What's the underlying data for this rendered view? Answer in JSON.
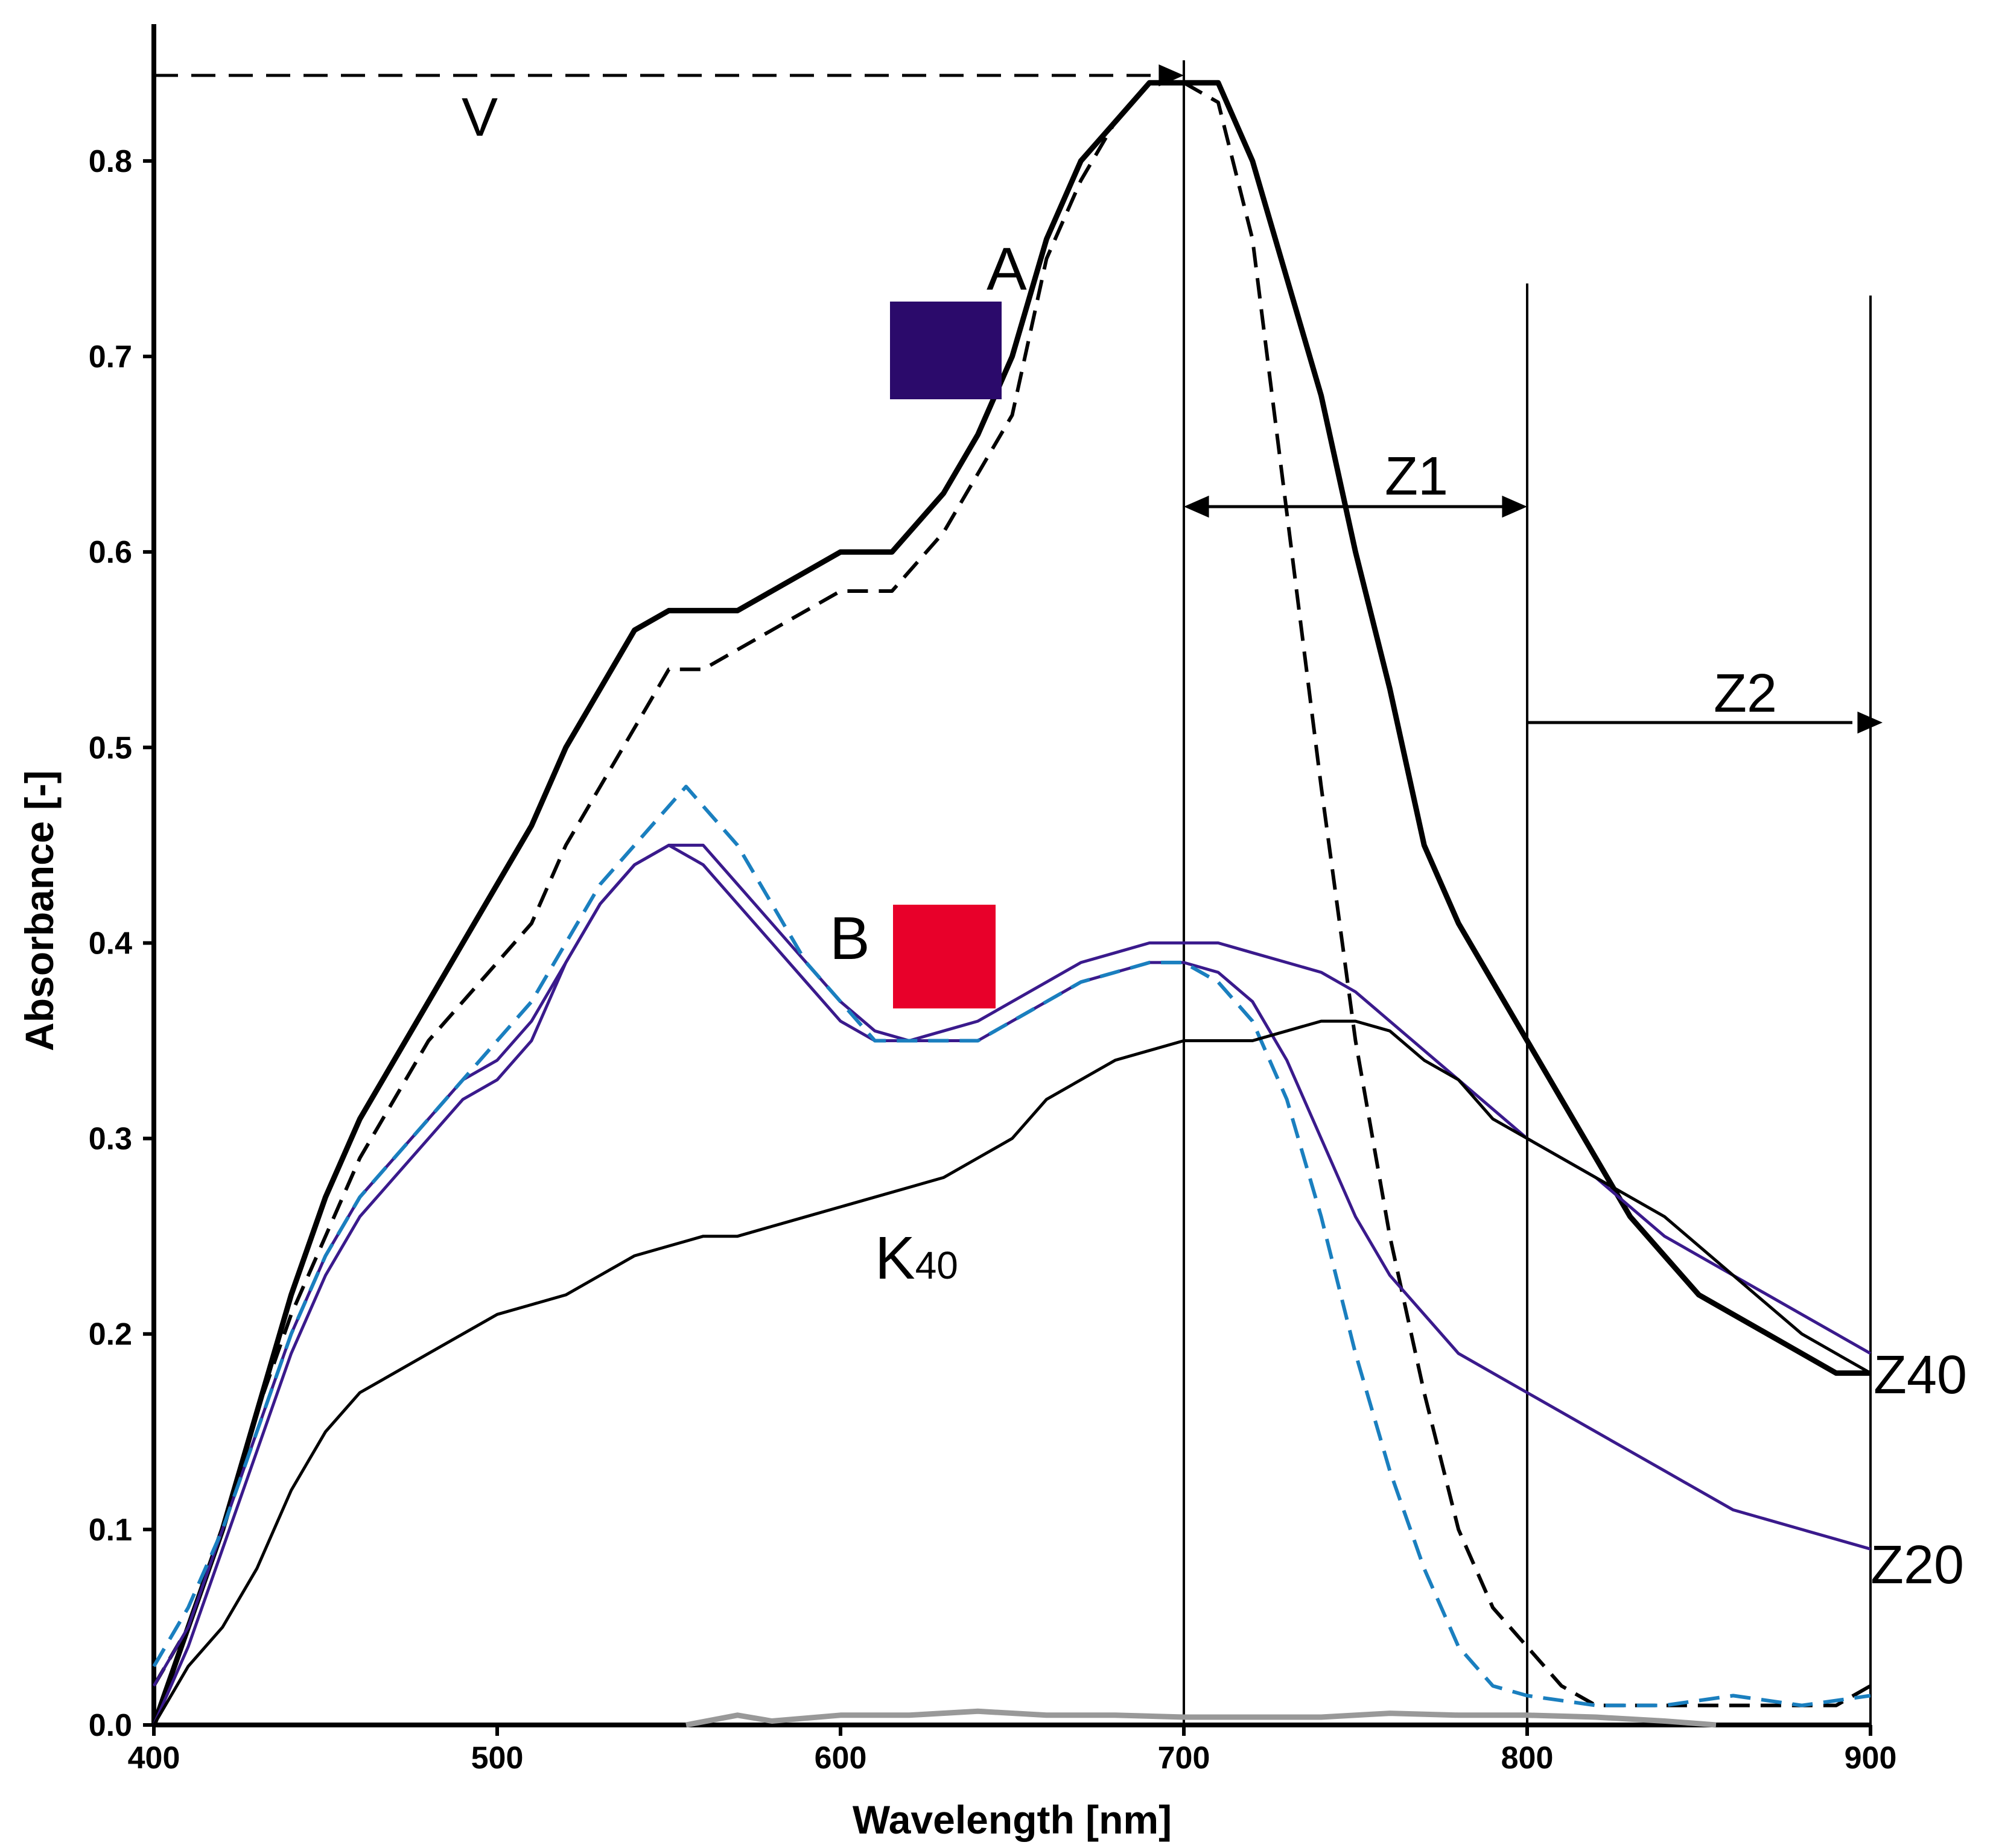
{
  "chart_data": {
    "type": "line",
    "xlabel": "Wavelength [nm]",
    "ylabel": "Absorbance [-]",
    "xlim": [
      400,
      900
    ],
    "ylim": [
      0,
      0.87
    ],
    "xticks": [
      400,
      500,
      600,
      700,
      800,
      900
    ],
    "yticks": [
      0.0,
      0.1,
      0.2,
      0.3,
      0.4,
      0.5,
      0.6,
      0.7,
      0.8
    ],
    "ytick_labels": [
      "0.0",
      "0.1",
      "0.2",
      "0.3",
      "0.4",
      "0.5",
      "0.6",
      "0.7",
      "0.8"
    ],
    "series": [
      {
        "name": "Z40 (A, solid)",
        "color": "#000000",
        "style": "solid-thick",
        "x": [
          400,
          410,
          420,
          430,
          440,
          450,
          460,
          470,
          480,
          490,
          500,
          510,
          520,
          530,
          540,
          550,
          560,
          570,
          580,
          590,
          600,
          615,
          630,
          640,
          650,
          660,
          670,
          680,
          690,
          700,
          710,
          720,
          730,
          740,
          750,
          760,
          770,
          780,
          790,
          800,
          810,
          820,
          830,
          840,
          850,
          860,
          870,
          880,
          890,
          900
        ],
        "y": [
          0.0,
          0.05,
          0.1,
          0.16,
          0.22,
          0.27,
          0.31,
          0.34,
          0.37,
          0.4,
          0.43,
          0.46,
          0.5,
          0.53,
          0.56,
          0.57,
          0.57,
          0.57,
          0.58,
          0.59,
          0.6,
          0.6,
          0.63,
          0.66,
          0.7,
          0.76,
          0.8,
          0.82,
          0.84,
          0.84,
          0.84,
          0.8,
          0.74,
          0.68,
          0.6,
          0.53,
          0.45,
          0.41,
          0.38,
          0.35,
          0.32,
          0.29,
          0.26,
          0.24,
          0.22,
          0.21,
          0.2,
          0.19,
          0.18,
          0.18
        ]
      },
      {
        "name": "V (A, dashed)",
        "color": "#000000",
        "style": "dashed",
        "x": [
          400,
          410,
          420,
          430,
          440,
          450,
          460,
          470,
          480,
          490,
          500,
          510,
          520,
          530,
          540,
          550,
          560,
          570,
          580,
          600,
          615,
          630,
          640,
          650,
          660,
          670,
          680,
          690,
          700,
          710,
          720,
          730,
          740,
          750,
          760,
          770,
          780,
          790,
          800,
          810,
          820,
          830,
          850,
          870,
          890,
          900
        ],
        "y": [
          0.02,
          0.05,
          0.1,
          0.16,
          0.21,
          0.25,
          0.29,
          0.32,
          0.35,
          0.37,
          0.39,
          0.41,
          0.45,
          0.48,
          0.51,
          0.54,
          0.54,
          0.55,
          0.56,
          0.58,
          0.58,
          0.61,
          0.64,
          0.67,
          0.75,
          0.79,
          0.82,
          0.84,
          0.84,
          0.83,
          0.76,
          0.62,
          0.48,
          0.35,
          0.25,
          0.17,
          0.1,
          0.06,
          0.04,
          0.02,
          0.01,
          0.01,
          0.01,
          0.01,
          0.01,
          0.02
        ]
      },
      {
        "name": "Z20 (B)",
        "color": "#3a1a8c",
        "style": "solid",
        "x": [
          400,
          410,
          420,
          430,
          440,
          450,
          460,
          470,
          480,
          490,
          500,
          510,
          520,
          530,
          540,
          550,
          560,
          570,
          580,
          590,
          600,
          610,
          620,
          630,
          640,
          650,
          660,
          670,
          680,
          690,
          700,
          710,
          720,
          730,
          740,
          750,
          760,
          770,
          780,
          790,
          800,
          820,
          840,
          860,
          880,
          900
        ],
        "y": [
          0.0,
          0.04,
          0.09,
          0.14,
          0.19,
          0.23,
          0.26,
          0.28,
          0.3,
          0.32,
          0.33,
          0.35,
          0.39,
          0.42,
          0.44,
          0.45,
          0.44,
          0.42,
          0.4,
          0.38,
          0.36,
          0.35,
          0.35,
          0.35,
          0.35,
          0.36,
          0.37,
          0.38,
          0.385,
          0.39,
          0.39,
          0.385,
          0.37,
          0.34,
          0.3,
          0.26,
          0.23,
          0.21,
          0.19,
          0.18,
          0.17,
          0.15,
          0.13,
          0.11,
          0.1,
          0.09
        ]
      },
      {
        "name": "Z40 (B)",
        "color": "#3a1a8c",
        "style": "solid",
        "x": [
          400,
          410,
          420,
          430,
          440,
          450,
          460,
          470,
          480,
          490,
          500,
          510,
          520,
          530,
          540,
          550,
          560,
          570,
          580,
          590,
          600,
          610,
          620,
          630,
          640,
          650,
          660,
          670,
          680,
          690,
          700,
          710,
          720,
          730,
          740,
          750,
          760,
          780,
          800,
          820,
          840,
          860,
          880,
          900
        ],
        "y": [
          0.02,
          0.05,
          0.1,
          0.15,
          0.2,
          0.24,
          0.27,
          0.29,
          0.31,
          0.33,
          0.34,
          0.36,
          0.39,
          0.42,
          0.44,
          0.45,
          0.45,
          0.43,
          0.41,
          0.39,
          0.37,
          0.355,
          0.35,
          0.355,
          0.36,
          0.37,
          0.38,
          0.39,
          0.395,
          0.4,
          0.4,
          0.4,
          0.395,
          0.39,
          0.385,
          0.375,
          0.36,
          0.33,
          0.3,
          0.28,
          0.25,
          0.23,
          0.21,
          0.19
        ]
      },
      {
        "name": "Reference (dashed blue)",
        "color": "#1a7fbf",
        "style": "dashed",
        "x": [
          400,
          410,
          420,
          430,
          440,
          450,
          460,
          470,
          480,
          490,
          500,
          510,
          520,
          530,
          540,
          550,
          555,
          560,
          570,
          580,
          590,
          600,
          610,
          620,
          630,
          640,
          650,
          660,
          670,
          680,
          690,
          700,
          710,
          720,
          730,
          740,
          750,
          760,
          770,
          780,
          790,
          800,
          820,
          840,
          860,
          880,
          900
        ],
        "y": [
          0.03,
          0.06,
          0.1,
          0.15,
          0.2,
          0.24,
          0.27,
          0.29,
          0.31,
          0.33,
          0.35,
          0.37,
          0.4,
          0.43,
          0.45,
          0.47,
          0.48,
          0.47,
          0.45,
          0.42,
          0.39,
          0.37,
          0.35,
          0.35,
          0.35,
          0.35,
          0.36,
          0.37,
          0.38,
          0.385,
          0.39,
          0.39,
          0.38,
          0.36,
          0.32,
          0.26,
          0.19,
          0.13,
          0.08,
          0.04,
          0.02,
          0.015,
          0.01,
          0.01,
          0.015,
          0.01,
          0.015
        ]
      },
      {
        "name": "K40",
        "color": "#000000",
        "style": "solid",
        "x": [
          400,
          410,
          420,
          430,
          440,
          450,
          460,
          470,
          480,
          490,
          500,
          510,
          520,
          530,
          540,
          550,
          560,
          570,
          580,
          590,
          600,
          610,
          620,
          630,
          640,
          650,
          660,
          670,
          680,
          690,
          700,
          710,
          720,
          730,
          740,
          750,
          760,
          770,
          780,
          790,
          800,
          820,
          840,
          860,
          880,
          900
        ],
        "y": [
          0.0,
          0.03,
          0.05,
          0.08,
          0.12,
          0.15,
          0.17,
          0.18,
          0.19,
          0.2,
          0.21,
          0.215,
          0.22,
          0.23,
          0.24,
          0.245,
          0.25,
          0.25,
          0.255,
          0.26,
          0.265,
          0.27,
          0.275,
          0.28,
          0.29,
          0.3,
          0.32,
          0.33,
          0.34,
          0.345,
          0.35,
          0.35,
          0.35,
          0.355,
          0.36,
          0.36,
          0.355,
          0.34,
          0.33,
          0.31,
          0.3,
          0.28,
          0.26,
          0.23,
          0.2,
          0.18
        ]
      },
      {
        "name": "Baseline (grey)",
        "color": "#999999",
        "style": "solid-thick",
        "x": [
          555,
          570,
          580,
          600,
          620,
          640,
          660,
          680,
          700,
          720,
          740,
          760,
          780,
          800,
          820,
          840,
          855
        ],
        "y": [
          0.0,
          0.005,
          0.002,
          0.005,
          0.005,
          0.007,
          0.005,
          0.005,
          0.004,
          0.004,
          0.004,
          0.006,
          0.005,
          0.005,
          0.004,
          0.002,
          0.0
        ]
      }
    ],
    "annotations": {
      "label_A": "A",
      "label_B": "B",
      "label_V": "V",
      "label_Z1": "Z1",
      "label_Z2": "Z2",
      "label_Z40": "Z40",
      "label_Z20": "Z20",
      "label_K": "K",
      "label_K_sub": "40",
      "swatch_A_color": "#2b0a6b",
      "swatch_B_color": "#e8002a",
      "arrow_V": [
        400,
        700
      ],
      "arrow_Z1": [
        700,
        800
      ],
      "arrow_Z2": [
        800,
        900
      ],
      "vlines": [
        700,
        800,
        900
      ]
    }
  }
}
